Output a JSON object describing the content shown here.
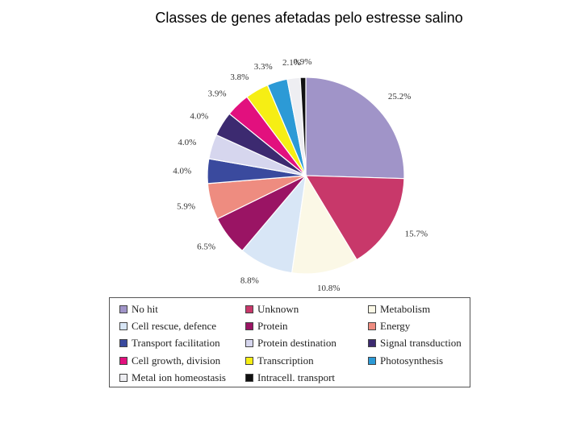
{
  "page_title": "Classes de genes afetadas pelo estresse salino",
  "chart_data": {
    "type": "pie",
    "title": "Classes de genes afetadas pelo estresse salino",
    "slices": [
      {
        "label": "No hit",
        "value": 25.2,
        "value_label": "25.2%",
        "color": "#a094c8"
      },
      {
        "label": "Unknown",
        "value": 15.7,
        "value_label": "15.7%",
        "color": "#c8386a"
      },
      {
        "label": "Metabolism",
        "value": 10.8,
        "value_label": "10.8%",
        "color": "#fbf8e6"
      },
      {
        "label": "Cell rescue, defence",
        "value": 8.8,
        "value_label": "8.8%",
        "color": "#d8e6f6"
      },
      {
        "label": "Protein",
        "value": 6.5,
        "value_label": "6.5%",
        "color": "#9a1464"
      },
      {
        "label": "Energy",
        "value": 5.9,
        "value_label": "5.9%",
        "color": "#ee8c80"
      },
      {
        "label": "Transport facilitation",
        "value": 4.0,
        "value_label": "4.0%",
        "color": "#3a4a9e"
      },
      {
        "label": "Protein destination",
        "value": 4.0,
        "value_label": "4.0%",
        "color": "#d6d6ee"
      },
      {
        "label": "Signal transduction",
        "value": 4.0,
        "value_label": "4.0%",
        "color": "#3c2a70"
      },
      {
        "label": "Cell growth, division",
        "value": 3.9,
        "value_label": "3.9%",
        "color": "#e2107e"
      },
      {
        "label": "Transcription",
        "value": 3.8,
        "value_label": "3.8%",
        "color": "#f6ee14"
      },
      {
        "label": "Photosynthesis",
        "value": 3.3,
        "value_label": "3.3%",
        "color": "#2c9ad6"
      },
      {
        "label": "Metal ion homeostasis",
        "value": 2.1,
        "value_label": "2.1%",
        "color": "#eeeef2"
      },
      {
        "label": "Intracell. transport",
        "value": 0.9,
        "value_label": "0.9%",
        "color": "#111111"
      }
    ],
    "legend": {
      "placement": "bottom",
      "columns": [
        [
          "No hit",
          "Cell rescue, defence",
          "Transport facilitation",
          "Cell growth, division",
          "Metal ion homeostasis"
        ],
        [
          "Unknown",
          "Protein",
          "Protein destination",
          "Transcription",
          "Intracell. transport"
        ],
        [
          "Metabolism",
          "Energy",
          "Signal transduction",
          "Photosynthesis"
        ]
      ]
    }
  }
}
